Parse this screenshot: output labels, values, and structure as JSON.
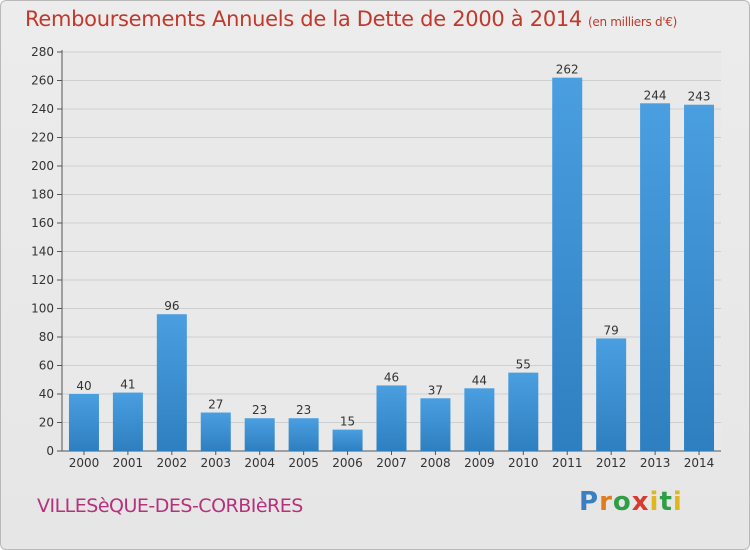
{
  "page": {
    "title": "Remboursements Annuels de la Dette de 2000 à 2014",
    "unit_note": "(en milliers d'€)",
    "commune": "VILLESèQUE-DES-CORBIèRES",
    "logo": "Proxiti"
  },
  "colors": {
    "title": "#c0392b",
    "commune": "#b5317c",
    "bar": "#4a9fe0",
    "bar_dark": "#2e7fc0"
  },
  "chart_data": {
    "type": "bar",
    "title": "Remboursements Annuels de la Dette de 2000 à 2014",
    "categories": [
      "2000",
      "2001",
      "2002",
      "2003",
      "2004",
      "2005",
      "2006",
      "2007",
      "2008",
      "2009",
      "2010",
      "2011",
      "2012",
      "2013",
      "2014"
    ],
    "values": [
      40,
      41,
      96,
      27,
      23,
      23,
      15,
      46,
      37,
      44,
      55,
      262,
      79,
      244,
      243
    ],
    "ylim": [
      0,
      280
    ],
    "yticks": [
      0,
      20,
      40,
      60,
      80,
      100,
      120,
      140,
      160,
      180,
      200,
      220,
      240,
      260,
      280
    ],
    "grid": true
  }
}
